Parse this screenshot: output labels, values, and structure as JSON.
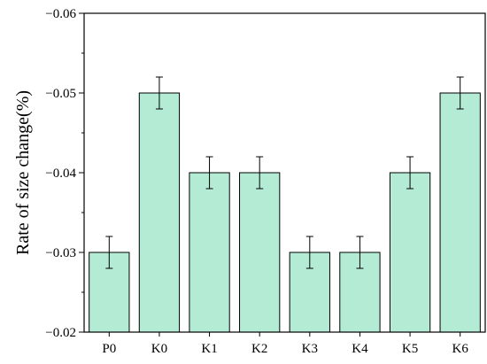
{
  "chart_data": {
    "type": "bar",
    "categories": [
      "P0",
      "K0",
      "K1",
      "K2",
      "K3",
      "K4",
      "K5",
      "K6"
    ],
    "values": [
      -0.03,
      -0.05,
      -0.04,
      -0.04,
      -0.03,
      -0.03,
      -0.04,
      -0.05
    ],
    "errors": [
      0.002,
      0.002,
      0.002,
      0.002,
      0.002,
      0.002,
      0.002,
      0.002
    ],
    "title": "",
    "xlabel": "",
    "ylabel": "Rate of size change(%)",
    "ylim": [
      -0.02,
      -0.06
    ],
    "yticks": [
      -0.02,
      -0.03,
      -0.04,
      -0.05,
      -0.06
    ],
    "ytick_labels": [
      "−0.02",
      "−0.03",
      "−0.04",
      "−0.05",
      "−0.06"
    ],
    "grid": false,
    "bar_color": "#b3ebd5",
    "edge_color": "#000000"
  }
}
